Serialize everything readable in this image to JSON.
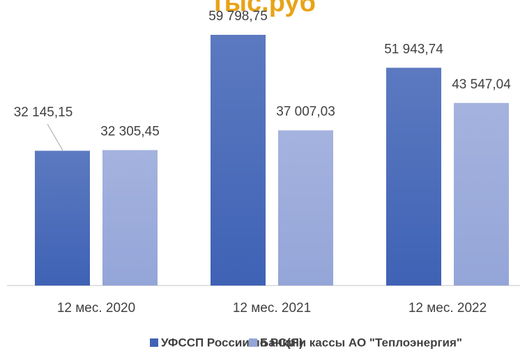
{
  "chart_data": {
    "type": "bar",
    "title": "тыс.руб",
    "categories": [
      "12 мес. 2020",
      "12 мес. 2021",
      "12 мес. 2022"
    ],
    "series": [
      {
        "name": "УФССП России по РС(Я)",
        "color": "#3f62b5",
        "values": [
          32145.15,
          59798.75,
          51943.74
        ],
        "value_labels": [
          "32 145,15",
          "59 798,75",
          "51 943,74"
        ]
      },
      {
        "name": "Банки и кассы АО \"Теплоэнергия\"",
        "color": "#94a5d8",
        "values": [
          32305.45,
          37007.03,
          43547.04
        ],
        "value_labels": [
          "32 305,45",
          "37 007,03",
          "43 547,04"
        ]
      }
    ]
  }
}
